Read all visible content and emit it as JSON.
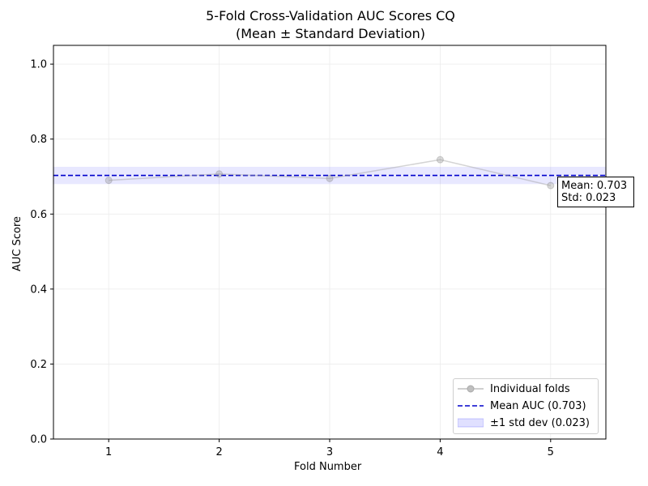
{
  "title": "5-Fold Cross-Validation AUC Scores CQ",
  "subtitle": "(Mean ± Standard Deviation)",
  "chart_data": {
    "type": "line",
    "title": "5-Fold Cross-Validation AUC Scores CQ",
    "subtitle": "(Mean ± Standard Deviation)",
    "xlabel": "Fold Number",
    "ylabel": "AUC Score",
    "xlim": [
      0.5,
      5.5
    ],
    "ylim": [
      0.0,
      1.05
    ],
    "x_ticks": [
      "1",
      "2",
      "3",
      "4",
      "5"
    ],
    "y_ticks": [
      "0.0",
      "0.2",
      "0.4",
      "0.6",
      "0.8",
      "1.0"
    ],
    "grid": true,
    "legend_position": "lower-right",
    "series": [
      {
        "name": "Individual folds",
        "x": [
          1,
          2,
          3,
          4,
          5
        ],
        "values": [
          0.69,
          0.707,
          0.695,
          0.745,
          0.676
        ],
        "color": "#bfbfbf"
      }
    ],
    "mean": 0.703,
    "std": 0.023,
    "mean_line": {
      "name": "Mean AUC (0.703)",
      "value": 0.703,
      "color": "#0000cc"
    },
    "std_band": {
      "name": "±1 std dev (0.023)",
      "lower": 0.68,
      "upper": 0.726,
      "color": "#6666ff"
    },
    "annotation": {
      "line1": "Mean: 0.703",
      "line2": "Std: 0.023"
    }
  }
}
